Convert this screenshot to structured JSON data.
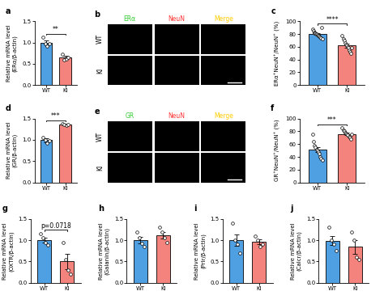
{
  "chart_data": [
    {
      "panel": "a",
      "type": "bar",
      "ylabel": "Relative mRNA level\n(ERα/β-actin)",
      "categories": [
        "WT",
        "KI"
      ],
      "values": [
        1.0,
        0.65
      ],
      "error": [
        0.05,
        0.04
      ],
      "points": [
        [
          1.12,
          0.98,
          0.92,
          0.97
        ],
        [
          0.72,
          0.6,
          0.62,
          0.66
        ]
      ],
      "colors": [
        "#4f9fe3",
        "#f4837d"
      ],
      "ylim": [
        0,
        1.5
      ],
      "yticks": [
        {
          "value": 0,
          "label": "0.0"
        },
        {
          "value": 0.5,
          "label": "0.5"
        },
        {
          "value": 1,
          "label": "1.0"
        },
        {
          "value": 1.5,
          "label": "1.5"
        }
      ],
      "annotation": "**"
    },
    {
      "panel": "c",
      "type": "bar",
      "ylabel": "ERα⁺NeuN⁺/NeuN⁺ (%)",
      "categories": [
        "WT",
        "KI"
      ],
      "values": [
        80,
        62
      ],
      "error": [
        1.5,
        3
      ],
      "points": [
        [
          88,
          85,
          83,
          82,
          81,
          80,
          80,
          79,
          78,
          77,
          76,
          75,
          74,
          90,
          72
        ],
        [
          78,
          72,
          70,
          66,
          64,
          62,
          60,
          58,
          55,
          52,
          50,
          58
        ]
      ],
      "colors": [
        "#4f9fe3",
        "#f4837d"
      ],
      "ylim": [
        0,
        100
      ],
      "yticks": [
        0,
        20,
        40,
        60,
        80,
        100
      ],
      "annotation": "****"
    },
    {
      "panel": "d",
      "type": "bar",
      "ylabel": "Relative mRNA level\n(GR/β-actin)",
      "categories": [
        "WT",
        "KI"
      ],
      "values": [
        0.99,
        1.36
      ],
      "error": [
        0.04,
        0.01
      ],
      "points": [
        [
          1.05,
          1.0,
          0.92,
          0.98
        ],
        [
          1.37,
          1.36,
          1.35,
          1.36
        ]
      ],
      "colors": [
        "#4f9fe3",
        "#f4837d"
      ],
      "ylim": [
        0,
        1.5
      ],
      "yticks": [
        {
          "value": 0,
          "label": "0.0"
        },
        {
          "value": 0.5,
          "label": "0.5"
        },
        {
          "value": 1,
          "label": "1.0"
        },
        {
          "value": 1.5,
          "label": "1.5"
        }
      ],
      "annotation": "***"
    },
    {
      "panel": "f",
      "type": "bar",
      "ylabel": "GR⁺NeuN⁺/NeuN⁺ (%)",
      "categories": [
        "WT",
        "KI"
      ],
      "values": [
        51,
        76
      ],
      "error": [
        4,
        2
      ],
      "points": [
        [
          75,
          64,
          58,
          55,
          52,
          50,
          48,
          45,
          40,
          38,
          35
        ],
        [
          85,
          82,
          80,
          78,
          77,
          76,
          74,
          72,
          70,
          68,
          75
        ]
      ],
      "colors": [
        "#4f9fe3",
        "#f4837d"
      ],
      "ylim": [
        0,
        100
      ],
      "yticks": [
        0,
        20,
        40,
        60,
        80,
        100
      ],
      "annotation": "***"
    },
    {
      "panel": "g",
      "type": "bar",
      "ylabel": "Relative mRNA level\n(OXTR/β-actin)",
      "categories": [
        "WT",
        "KI"
      ],
      "values": [
        1.0,
        0.5
      ],
      "error": [
        0.06,
        0.18
      ],
      "points": [
        [
          1.15,
          1.05,
          0.95,
          0.88
        ],
        [
          0.95,
          0.55,
          0.3,
          0.2
        ]
      ],
      "colors": [
        "#4f9fe3",
        "#f4837d"
      ],
      "ylim": [
        0,
        1.5
      ],
      "yticks": [
        {
          "value": 0,
          "label": "0.0"
        },
        {
          "value": 0.5,
          "label": "0.5"
        },
        {
          "value": 1,
          "label": "1.0"
        },
        {
          "value": 1.5,
          "label": "1.5"
        }
      ],
      "annotation": "p=0.0718"
    },
    {
      "panel": "h",
      "type": "bar",
      "ylabel": "Relative mRNA level\n(Galanin/β-actin)",
      "categories": [
        "WT",
        "KI"
      ],
      "values": [
        1.0,
        1.12
      ],
      "error": [
        0.08,
        0.08
      ],
      "points": [
        [
          1.2,
          1.05,
          0.92,
          0.85
        ],
        [
          1.3,
          1.2,
          1.05,
          0.95
        ]
      ],
      "colors": [
        "#4f9fe3",
        "#f4837d"
      ],
      "ylim": [
        0,
        1.5
      ],
      "yticks": [
        {
          "value": 0,
          "label": "0.0"
        },
        {
          "value": 0.5,
          "label": "0.5"
        },
        {
          "value": 1,
          "label": "1.0"
        },
        {
          "value": 1.5,
          "label": "1.5"
        }
      ]
    },
    {
      "panel": "i",
      "type": "bar",
      "ylabel": "Relative mRNA level\n(Prlr/β-actin)",
      "categories": [
        "WT",
        "KI"
      ],
      "values": [
        1.0,
        0.96
      ],
      "error": [
        0.14,
        0.06
      ],
      "points": [
        [
          1.4,
          1.0,
          0.9,
          0.7
        ],
        [
          1.1,
          1.0,
          0.85,
          0.9
        ]
      ],
      "colors": [
        "#4f9fe3",
        "#f4837d"
      ],
      "ylim": [
        0,
        1.5
      ],
      "yticks": [
        {
          "value": 0,
          "label": "0.0"
        },
        {
          "value": 0.5,
          "label": "0.5"
        },
        {
          "value": 1,
          "label": "1.0"
        },
        {
          "value": 1.5,
          "label": "1.5"
        }
      ]
    },
    {
      "panel": "j",
      "type": "bar",
      "ylabel": "Relative mRNA level\n(Calcr/β-actin)",
      "categories": [
        "WT",
        "KI"
      ],
      "values": [
        0.99,
        0.84
      ],
      "error": [
        0.11,
        0.16
      ],
      "points": [
        [
          1.3,
          1.0,
          0.9,
          0.75
        ],
        [
          1.2,
          1.0,
          0.6,
          0.55
        ]
      ],
      "colors": [
        "#4f9fe3",
        "#f4837d"
      ],
      "ylim": [
        0,
        1.5
      ],
      "yticks": [
        {
          "value": 0,
          "label": "0.0"
        },
        {
          "value": 0.5,
          "label": "0.5"
        },
        {
          "value": 1,
          "label": "1.0"
        },
        {
          "value": 1.5,
          "label": "1.5"
        }
      ]
    }
  ],
  "images": [
    {
      "panel": "b",
      "channels": [
        "ERα",
        "NeuN",
        "Merge"
      ],
      "rows": [
        "WT",
        "KI"
      ],
      "colors": [
        "#33cc33",
        "#ff3333",
        "#ffcc00"
      ]
    },
    {
      "panel": "e",
      "channels": [
        "GR",
        "NeuN",
        "Merge"
      ],
      "rows": [
        "WT",
        "KI"
      ],
      "colors": [
        "#33cc33",
        "#ff3333",
        "#ffcc00"
      ]
    }
  ]
}
